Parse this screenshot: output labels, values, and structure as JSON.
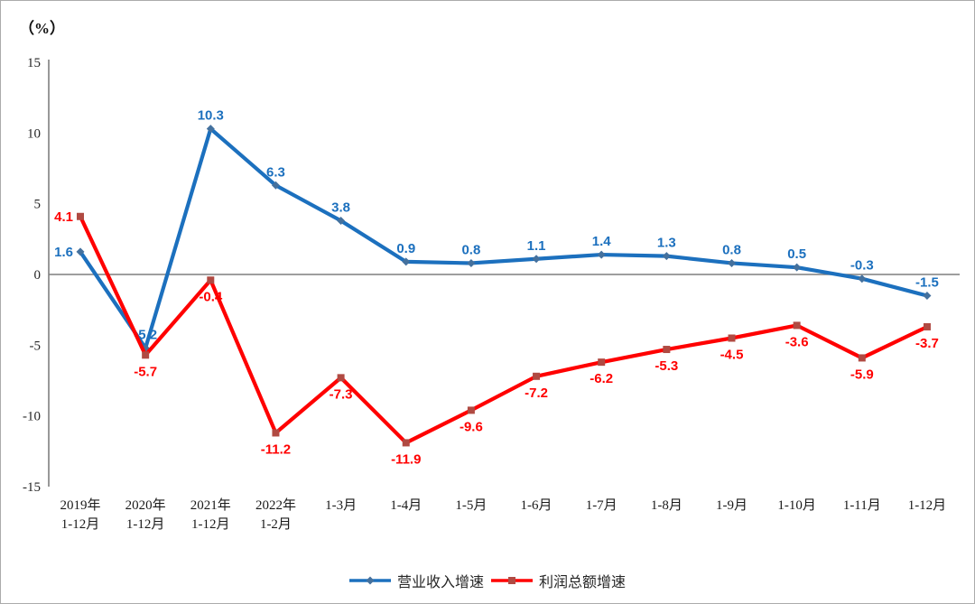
{
  "chart_data": {
    "type": "line",
    "unit_label": "（%）",
    "title": "",
    "xlabel": "",
    "ylabel": "（%）",
    "ylim": [
      -15,
      15
    ],
    "yticks": [
      15,
      10,
      5,
      0,
      -5,
      -10,
      -15
    ],
    "grid": "zero-baseline-only",
    "legend_position": "bottom-center",
    "axis_color": "#7f7f7f",
    "categories": [
      [
        "2019年",
        "1-12月"
      ],
      [
        "2020年",
        "1-12月"
      ],
      [
        "2021年",
        "1-12月"
      ],
      [
        "2022年",
        "1-2月"
      ],
      [
        "1-3月"
      ],
      [
        "1-4月"
      ],
      [
        "1-5月"
      ],
      [
        "1-6月"
      ],
      [
        "1-7月"
      ],
      [
        "1-8月"
      ],
      [
        "1-9月"
      ],
      [
        "1-10月"
      ],
      [
        "1-11月"
      ],
      [
        "1-12月"
      ]
    ],
    "series": [
      {
        "name": "营业收入增速",
        "color": "#1c70be",
        "marker": "diamond",
        "marker_color": "#44719e",
        "label_position": "above",
        "values": [
          1.6,
          -5.2,
          10.3,
          6.3,
          3.8,
          0.9,
          0.8,
          1.1,
          1.4,
          1.3,
          0.8,
          0.5,
          -0.3,
          -1.5
        ]
      },
      {
        "name": "利润总额增速",
        "color": "#ff0000",
        "marker": "square",
        "marker_color": "#b04a42",
        "label_position": "below",
        "values": [
          4.1,
          -5.7,
          -0.4,
          -11.2,
          -7.3,
          -11.9,
          -9.6,
          -7.2,
          -6.2,
          -5.3,
          -4.5,
          -3.6,
          -5.9,
          -3.7
        ]
      }
    ]
  }
}
